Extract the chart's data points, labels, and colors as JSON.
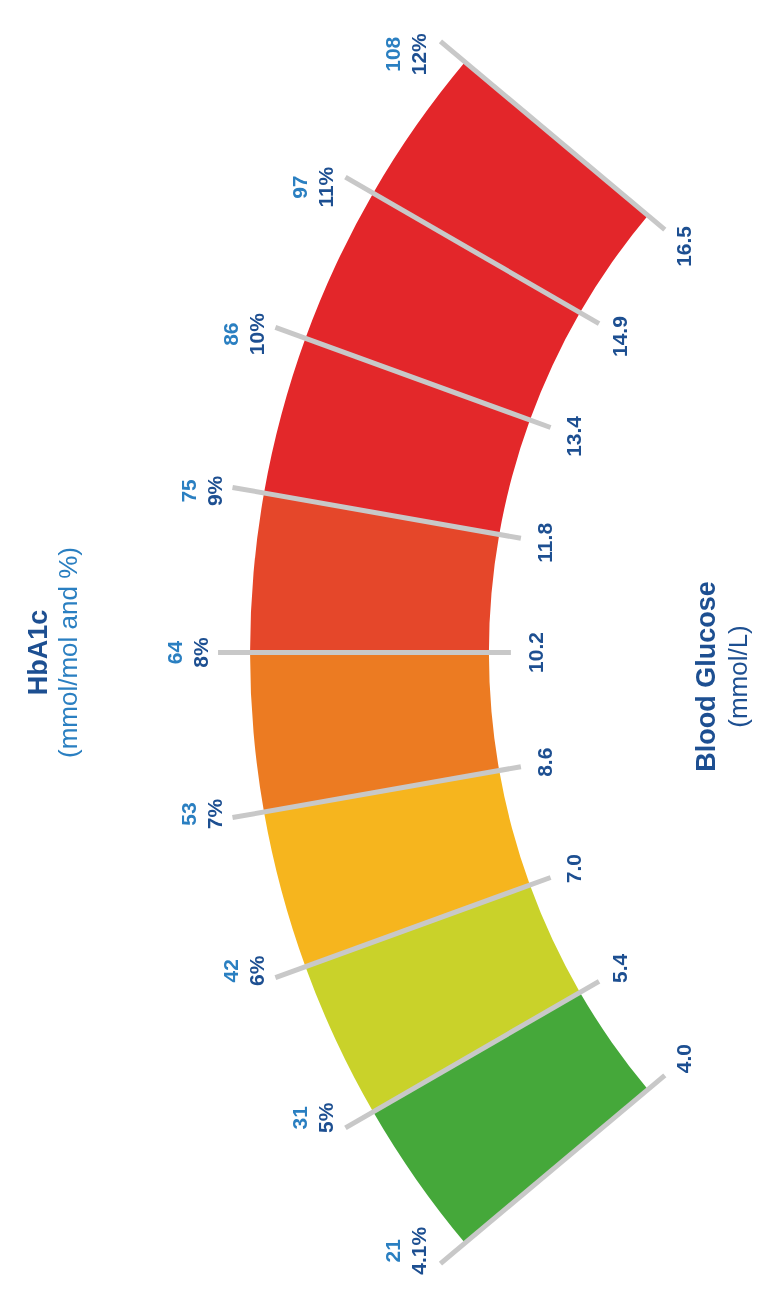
{
  "chart_data": {
    "type": "donut",
    "title": "HbA1c",
    "subtitle": "(mmol/mol and %)",
    "xlabel": "Blood Glucose",
    "annotations": [
      "4.0",
      "5.4",
      "7.0",
      "8.6",
      "10.2",
      "11.8",
      "13.4",
      "14.9",
      "16.5",
      "21",
      "31",
      "42",
      "53",
      "64",
      "75",
      "86",
      "97",
      "108",
      "4.1%",
      "5%",
      "6%",
      "7%",
      "8%",
      "9%",
      "10%",
      "11%",
      "12%",
      "(mmol/L)"
    ],
    "categories": [
      null,
      null,
      null,
      null,
      null,
      null,
      null,
      null
    ],
    "values": [
      12.5,
      12.5,
      12.5,
      12.5,
      12.5,
      12.5,
      12.5,
      12.5
    ],
    "colors": [
      "#45a83a",
      "#c9d22a",
      "#f6b51e",
      "#ec7b22",
      "#e5472a",
      "#e3282a",
      "#e3262a",
      "#e3262a"
    ]
  }
}
